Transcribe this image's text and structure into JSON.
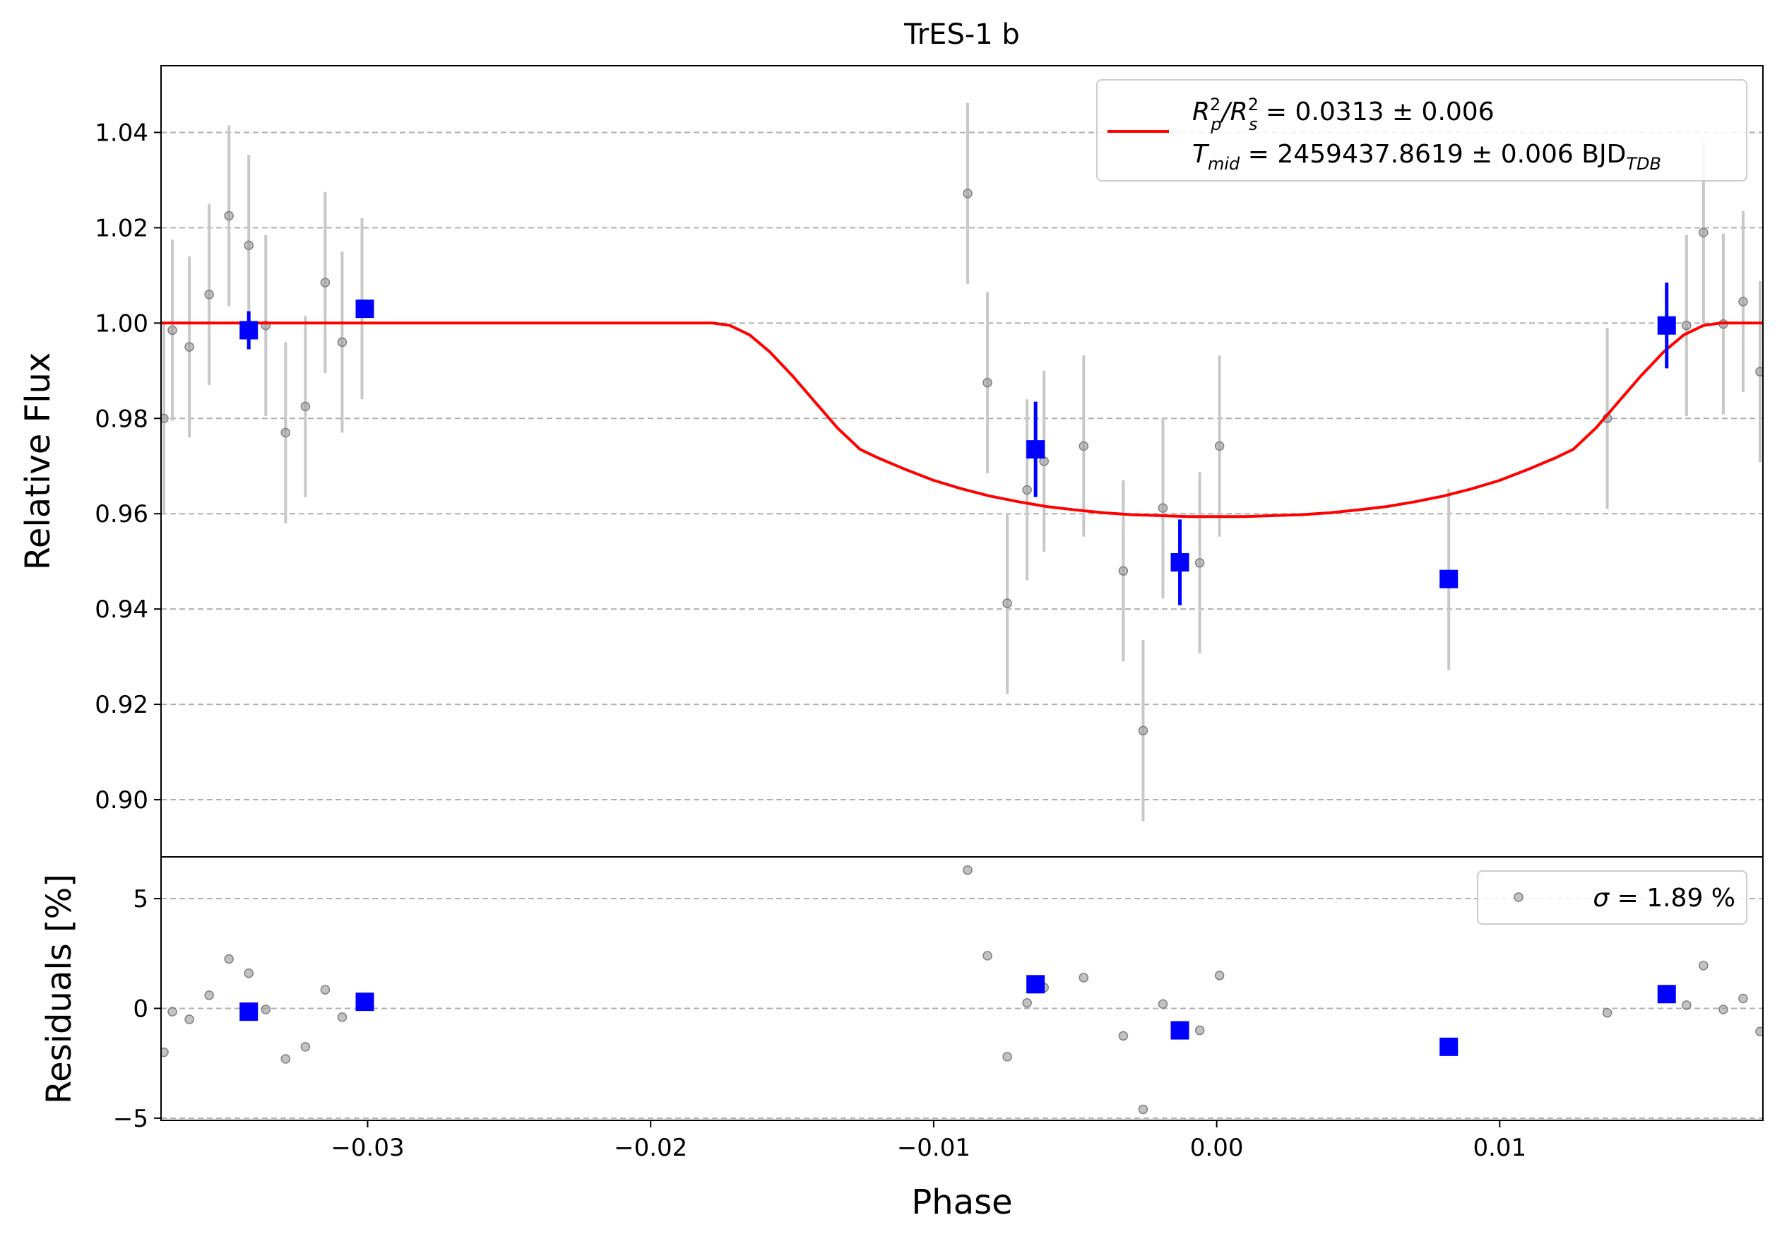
{
  "chart_data": {
    "type": "scatter",
    "title": "TrES-1 b",
    "xlabel": "Phase",
    "xlim": [
      -0.0373,
      0.0193
    ],
    "x_ticks": [
      -0.03,
      -0.02,
      -0.01,
      0.0,
      0.01
    ],
    "x_tick_labels": [
      "−0.03",
      "−0.02",
      "−0.01",
      "0.00",
      "0.01"
    ],
    "grid": "y dashed",
    "top_panel": {
      "ylabel": "Relative Flux",
      "ylim": [
        0.888,
        1.054
      ],
      "y_ticks": [
        0.9,
        0.92,
        0.94,
        0.96,
        0.98,
        1.0,
        1.02,
        1.04
      ],
      "y_tick_labels": [
        "0.90",
        "0.92",
        "0.94",
        "0.96",
        "0.98",
        "1.00",
        "1.02",
        "1.04"
      ],
      "legend": {
        "placement": "top-right",
        "line1": {
          "main": "R",
          "sup1": "2",
          "sub1": "p",
          "mid": "/R",
          "sup2": "2",
          "sub2": "s",
          "rest": " = 0.0313 ± 0.006"
        },
        "line2": {
          "main": "T",
          "sub1": "mid",
          "rest": " = 2459437.8619 ± 0.006 BJD",
          "sub2": "TDB"
        }
      },
      "model": {
        "color": "#ff0000",
        "points": [
          [
            -0.0373,
            1.0
          ],
          [
            -0.0178,
            1.0
          ],
          [
            -0.0172,
            0.9995
          ],
          [
            -0.0165,
            0.9975
          ],
          [
            -0.0158,
            0.994
          ],
          [
            -0.015,
            0.989
          ],
          [
            -0.0142,
            0.9835
          ],
          [
            -0.0134,
            0.978
          ],
          [
            -0.0126,
            0.9735
          ],
          [
            -0.012,
            0.9718
          ],
          [
            -0.011,
            0.9693
          ],
          [
            -0.01,
            0.967
          ],
          [
            -0.009,
            0.9652
          ],
          [
            -0.008,
            0.9637
          ],
          [
            -0.007,
            0.9625
          ],
          [
            -0.006,
            0.9615
          ],
          [
            -0.005,
            0.9608
          ],
          [
            -0.004,
            0.9602
          ],
          [
            -0.003,
            0.9598
          ],
          [
            -0.002,
            0.9596
          ],
          [
            -0.001,
            0.9594
          ],
          [
            0.0,
            0.9594
          ],
          [
            0.001,
            0.9594
          ],
          [
            0.002,
            0.9596
          ],
          [
            0.003,
            0.9598
          ],
          [
            0.004,
            0.9602
          ],
          [
            0.005,
            0.9608
          ],
          [
            0.006,
            0.9615
          ],
          [
            0.007,
            0.9625
          ],
          [
            0.008,
            0.9637
          ],
          [
            0.009,
            0.9652
          ],
          [
            0.01,
            0.967
          ],
          [
            0.011,
            0.9693
          ],
          [
            0.012,
            0.9718
          ],
          [
            0.0126,
            0.9735
          ],
          [
            0.0134,
            0.978
          ],
          [
            0.0142,
            0.9835
          ],
          [
            0.015,
            0.989
          ],
          [
            0.0158,
            0.994
          ],
          [
            0.0165,
            0.9975
          ],
          [
            0.0172,
            0.9995
          ],
          [
            0.0178,
            1.0
          ],
          [
            0.0193,
            1.0
          ]
        ]
      },
      "raw": {
        "color": "#999999",
        "points": [
          [
            -0.0372,
            0.98,
            0.02
          ],
          [
            -0.0369,
            0.9985,
            0.019
          ],
          [
            -0.0363,
            0.995,
            0.019
          ],
          [
            -0.0356,
            1.006,
            0.019
          ],
          [
            -0.0349,
            1.0225,
            0.019
          ],
          [
            -0.0342,
            1.0163,
            0.019
          ],
          [
            -0.0336,
            0.9995,
            0.019
          ],
          [
            -0.0329,
            0.977,
            0.019
          ],
          [
            -0.0322,
            0.9825,
            0.019
          ],
          [
            -0.0315,
            1.0085,
            0.019
          ],
          [
            -0.0309,
            0.996,
            0.019
          ],
          [
            -0.0302,
            1.003,
            0.019
          ],
          [
            -0.0088,
            1.0272,
            0.019
          ],
          [
            -0.0081,
            0.9875,
            0.019
          ],
          [
            -0.0074,
            0.9412,
            0.019
          ],
          [
            -0.0067,
            0.965,
            0.019
          ],
          [
            -0.0061,
            0.971,
            0.019
          ],
          [
            -0.0047,
            0.9742,
            0.019
          ],
          [
            -0.0033,
            0.948,
            0.019
          ],
          [
            -0.0026,
            0.9145,
            0.019
          ],
          [
            -0.0019,
            0.9612,
            0.019
          ],
          [
            -0.0006,
            0.9497,
            0.019
          ],
          [
            0.0001,
            0.9742,
            0.019
          ],
          [
            0.0082,
            0.9462,
            0.019
          ],
          [
            0.0138,
            0.98,
            0.019
          ],
          [
            0.0166,
            0.9995,
            0.019
          ],
          [
            0.0172,
            1.019,
            0.019
          ],
          [
            0.0179,
            0.9998,
            0.019
          ],
          [
            0.0186,
            1.0045,
            0.019
          ],
          [
            0.0192,
            0.9898,
            0.019
          ]
        ]
      },
      "binned": {
        "color": "#0000ff",
        "points": [
          [
            -0.0342,
            0.9985,
            0.004
          ],
          [
            -0.0301,
            1.003,
            0.0
          ],
          [
            -0.0064,
            0.9735,
            0.01
          ],
          [
            -0.0013,
            0.9498,
            0.009
          ],
          [
            0.0082,
            0.9463,
            0.0
          ],
          [
            0.0159,
            0.9995,
            0.009
          ]
        ]
      }
    },
    "bottom_panel": {
      "ylabel": "Residuals [%]",
      "ylim": [
        -5.1,
        6.9
      ],
      "y_ticks": [
        -5,
        0,
        5
      ],
      "y_tick_labels": [
        "−5",
        "0",
        "5"
      ],
      "legend": {
        "placement": "top-right",
        "sigma_symbol": "σ",
        "text": " = 1.89 %"
      },
      "raw": [
        [
          -0.0372,
          -2.0
        ],
        [
          -0.0369,
          -0.15
        ],
        [
          -0.0363,
          -0.5
        ],
        [
          -0.0356,
          0.6
        ],
        [
          -0.0349,
          2.25
        ],
        [
          -0.0342,
          1.6
        ],
        [
          -0.0336,
          -0.05
        ],
        [
          -0.0329,
          -2.3
        ],
        [
          -0.0322,
          -1.75
        ],
        [
          -0.0315,
          0.85
        ],
        [
          -0.0309,
          -0.4
        ],
        [
          -0.0302,
          0.3
        ],
        [
          -0.0088,
          6.3
        ],
        [
          -0.0081,
          2.4
        ],
        [
          -0.0074,
          -2.2
        ],
        [
          -0.0067,
          0.25
        ],
        [
          -0.0061,
          0.95
        ],
        [
          -0.0047,
          1.4
        ],
        [
          -0.0033,
          -1.25
        ],
        [
          -0.0026,
          -4.6
        ],
        [
          -0.0019,
          0.2
        ],
        [
          -0.0006,
          -1.0
        ],
        [
          0.0001,
          1.5
        ],
        [
          0.0082,
          -1.75
        ],
        [
          0.0138,
          -0.2
        ],
        [
          0.0166,
          0.15
        ],
        [
          0.0172,
          1.95
        ],
        [
          0.0179,
          -0.05
        ],
        [
          0.0186,
          0.45
        ],
        [
          0.0192,
          -1.05
        ]
      ],
      "binned": [
        [
          -0.0342,
          -0.15
        ],
        [
          -0.0301,
          0.3
        ],
        [
          -0.0064,
          1.1
        ],
        [
          -0.0013,
          -1.0
        ],
        [
          0.0082,
          -1.75
        ],
        [
          0.0159,
          0.65
        ]
      ]
    }
  }
}
